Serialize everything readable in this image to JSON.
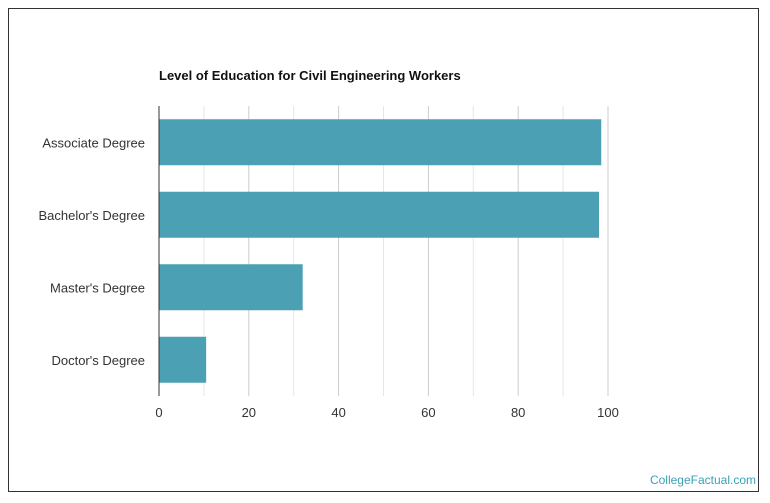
{
  "chart_data": {
    "type": "bar",
    "orientation": "horizontal",
    "title": "Level of Education for Civil Engineering Workers",
    "categories": [
      "Associate Degree",
      "Bachelor's Degree",
      "Master's Degree",
      "Doctor's Degree"
    ],
    "values": [
      98.5,
      98,
      32,
      10.5
    ],
    "xlim": [
      0,
      100
    ],
    "xticks": [
      0,
      20,
      40,
      60,
      80,
      100
    ],
    "grid": "vertical",
    "bar_color": "#4ba0b4"
  },
  "watermark": {
    "text": "CollegeFactual.com",
    "color": "#3aa0b5"
  }
}
